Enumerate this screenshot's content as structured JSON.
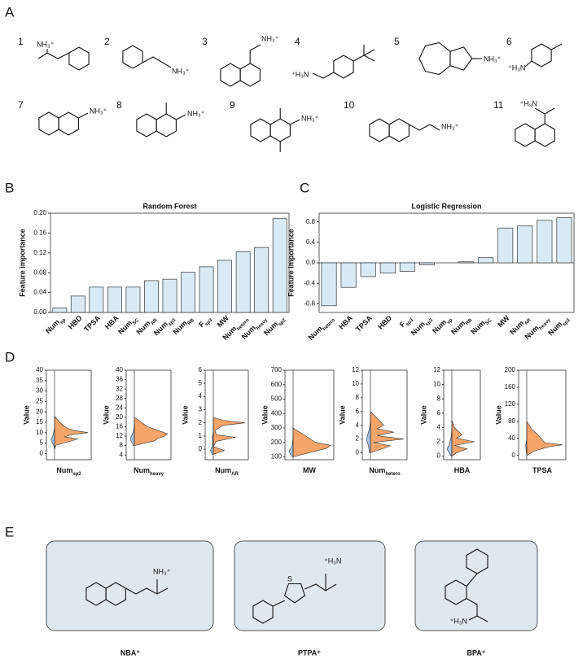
{
  "panel_labels": {
    "a": "A",
    "b": "B",
    "c": "C",
    "d": "D",
    "e": "E"
  },
  "molecules": [
    {
      "number": "1",
      "labels": [
        "NH₃⁺"
      ]
    },
    {
      "number": "2",
      "labels": [
        "NH₃⁺"
      ]
    },
    {
      "number": "3",
      "labels": [
        "NH₃⁺"
      ]
    },
    {
      "number": "4",
      "labels": [
        "⁺H₃N"
      ]
    },
    {
      "number": "5",
      "labels": [
        "NH₃⁺"
      ]
    },
    {
      "number": "6",
      "labels": [
        "⁺H₃N"
      ]
    },
    {
      "number": "7",
      "labels": [
        "NH₃⁺"
      ]
    },
    {
      "number": "8",
      "labels": [
        "NH₃⁺"
      ]
    },
    {
      "number": "9",
      "labels": [
        "NH₃⁺"
      ]
    },
    {
      "number": "10",
      "labels": [
        "NH₃⁺"
      ]
    },
    {
      "number": "11",
      "labels": [
        "⁺H₃N"
      ]
    }
  ],
  "chart_data": [
    {
      "type": "bar",
      "title": "Random Forest",
      "ylabel": "Feature importance",
      "color": "#d9eaf5",
      "categories": [
        {
          "text": "Num",
          "sub": "sp"
        },
        {
          "text": "HBD"
        },
        {
          "text": "TPSA"
        },
        {
          "text": "HBA"
        },
        {
          "text": "Num",
          "sub": "SC"
        },
        {
          "text": "Num",
          "sub": "AR"
        },
        {
          "text": "Num",
          "sub": "sp3"
        },
        {
          "text": "Num",
          "sub": "RB"
        },
        {
          "text": "F",
          "sub": "sp3"
        },
        {
          "text": "MW"
        },
        {
          "text": "Num",
          "sub": "hetero"
        },
        {
          "text": "Num",
          "sub": "heavy"
        },
        {
          "text": "Num",
          "sub": "sp2"
        }
      ],
      "values": [
        0.009,
        0.033,
        0.051,
        0.051,
        0.051,
        0.064,
        0.067,
        0.081,
        0.092,
        0.105,
        0.122,
        0.131,
        0.189
      ],
      "ylim": [
        0,
        0.2
      ],
      "yticks": [
        {
          "value": 0,
          "label": "0.00"
        },
        {
          "value": 0.04,
          "label": "0.04"
        },
        {
          "value": 0.08,
          "label": "0.08"
        },
        {
          "value": 0.12,
          "label": "0.12"
        },
        {
          "value": 0.16,
          "label": "0.16"
        },
        {
          "value": 0.2,
          "label": "0.20"
        }
      ]
    },
    {
      "type": "bar",
      "title": "Logistic Regression",
      "ylabel": "Feature importance",
      "color": "#d9eaf5",
      "categories": [
        {
          "text": "Num",
          "sub": "hetero"
        },
        {
          "text": "HBA"
        },
        {
          "text": "TPSA"
        },
        {
          "text": "HBD"
        },
        {
          "text": "F",
          "sub": "sp3"
        },
        {
          "text": "Num",
          "sub": "sp3"
        },
        {
          "text": "Num",
          "sub": "sp"
        },
        {
          "text": "Num",
          "sub": "RB"
        },
        {
          "text": "Num",
          "sub": "SC"
        },
        {
          "text": "MW"
        },
        {
          "text": "Num",
          "sub": "AR"
        },
        {
          "text": "Num",
          "sub": "heavy"
        },
        {
          "text": "Num",
          "sub": "sp2"
        }
      ],
      "values": [
        -0.84,
        -0.48,
        -0.27,
        -0.2,
        -0.17,
        -0.04,
        0.0,
        0.02,
        0.1,
        0.68,
        0.72,
        0.83,
        0.88
      ],
      "ylim": [
        -0.97,
        0.97
      ],
      "yticks": [
        -0.8,
        -0.4,
        {
          "value": 0,
          "label": "0.0"
        },
        0.4,
        0.8
      ]
    },
    {
      "type": "split-violin",
      "ylabel": "Value",
      "xlabel": {
        "text": "Num",
        "sub": "sp2"
      },
      "ylim": [
        -3,
        40
      ],
      "yticks": [
        0,
        5,
        10,
        15,
        20,
        25,
        30,
        35,
        40
      ],
      "y": [
        2,
        4,
        6,
        7,
        8,
        9,
        10,
        11,
        12,
        13,
        15,
        18
      ],
      "series": [
        {
          "color": "#a9c4e8",
          "values": [
            0,
            0.1,
            0.3,
            0.35,
            0.2,
            0.15,
            0.1,
            0.05,
            0.03,
            0,
            0,
            0
          ]
        },
        {
          "color": "#f5a46a",
          "values": [
            0,
            0.05,
            0.5,
            0.7,
            0.3,
            0.5,
            1,
            0.6,
            0.4,
            0.3,
            0.15,
            0
          ]
        }
      ]
    },
    {
      "type": "split-violin",
      "ylabel": "Value",
      "xlabel": {
        "text": "Num",
        "sub": "heavy"
      },
      "ylim": [
        2,
        40
      ],
      "yticks": [
        4,
        8,
        12,
        16,
        20,
        24,
        28,
        32,
        36,
        40
      ],
      "y": [
        8,
        9,
        10,
        11,
        12,
        13,
        14,
        15,
        16,
        18,
        20
      ],
      "series": [
        {
          "color": "#a9c4e8",
          "values": [
            0.1,
            0.2,
            0.35,
            0.4,
            0.3,
            0.2,
            0.1,
            0.05,
            0.03,
            0,
            0
          ]
        },
        {
          "color": "#f5a46a",
          "values": [
            0,
            0.3,
            0.6,
            0.7,
            0.9,
            1,
            0.8,
            0.6,
            0.4,
            0.2,
            0
          ]
        }
      ]
    },
    {
      "type": "split-violin",
      "ylabel": "Value",
      "xlabel": {
        "text": "Num",
        "sub": "AR"
      },
      "ylim": [
        -0.8,
        6
      ],
      "yticks": [
        0,
        1,
        2,
        3,
        4,
        5,
        6
      ],
      "y": [
        -0.4,
        -0.1,
        0.2,
        0.6,
        0.9,
        1.1,
        1.4,
        1.8,
        2,
        2.2,
        2.4
      ],
      "series": [
        {
          "color": "#a9c4e8",
          "values": [
            0.1,
            0.3,
            0.1,
            0.05,
            0.1,
            0.05,
            0,
            0,
            0,
            0,
            0
          ]
        },
        {
          "color": "#f5a46a",
          "values": [
            0,
            0.35,
            0,
            0.1,
            0.7,
            0.1,
            0.05,
            0.3,
            1,
            0.3,
            0
          ]
        }
      ]
    },
    {
      "type": "split-violin",
      "ylabel": "Value",
      "xlabel": {
        "text": "MW"
      },
      "ylim": [
        80,
        700
      ],
      "yticks": [
        100,
        200,
        300,
        400,
        500,
        600,
        700
      ],
      "y": [
        100,
        120,
        140,
        160,
        180,
        200,
        250,
        300
      ],
      "series": [
        {
          "color": "#a9c4e8",
          "values": [
            0.1,
            0.3,
            0.4,
            0.2,
            0.1,
            0.05,
            0,
            0
          ]
        },
        {
          "color": "#f5a46a",
          "values": [
            0,
            0.3,
            0.6,
            0.9,
            1,
            0.6,
            0.3,
            0
          ]
        }
      ]
    },
    {
      "type": "split-violin",
      "ylabel": "Value",
      "xlabel": {
        "text": "Num",
        "sub": "hetero"
      },
      "ylim": [
        -1,
        12
      ],
      "yticks": [
        0,
        2,
        4,
        6,
        8,
        10,
        12
      ],
      "y": [
        0,
        1,
        1.5,
        2,
        2.5,
        3,
        3.5,
        4,
        5,
        6
      ],
      "series": [
        {
          "color": "#a9c4e8",
          "values": [
            0.1,
            0.2,
            0.3,
            0.4,
            0.3,
            0.2,
            0.1,
            0.05,
            0,
            0
          ]
        },
        {
          "color": "#f5a46a",
          "values": [
            0,
            0.6,
            0.1,
            1,
            0.2,
            0.7,
            0.2,
            0.4,
            0.2,
            0
          ]
        }
      ]
    },
    {
      "type": "split-violin",
      "ylabel": "Value",
      "xlabel": {
        "text": "HBA"
      },
      "ylim": [
        -0.5,
        12
      ],
      "yticks": [
        0,
        2,
        4,
        6,
        8,
        10,
        12
      ],
      "y": [
        0,
        0.5,
        1,
        1.5,
        2,
        2.5,
        3,
        4,
        5
      ],
      "series": [
        {
          "color": "#a9c4e8",
          "values": [
            0.05,
            0.3,
            0.5,
            0.3,
            0.2,
            0.1,
            0.05,
            0,
            0
          ]
        },
        {
          "color": "#f5a46a",
          "values": [
            0,
            0.2,
            0.6,
            0.1,
            0.9,
            0.2,
            0.4,
            0.1,
            0
          ]
        }
      ]
    },
    {
      "type": "split-violin",
      "ylabel": "Value",
      "xlabel": {
        "text": "TPSA"
      },
      "ylim": [
        -10,
        200
      ],
      "yticks": [
        0,
        40,
        80,
        120,
        160,
        200
      ],
      "y": [
        0,
        10,
        20,
        25,
        30,
        40,
        50,
        60,
        80
      ],
      "series": [
        {
          "color": "#a9c4e8",
          "values": [
            0,
            0.05,
            0.1,
            0.1,
            0.05,
            0,
            0,
            0,
            0
          ]
        },
        {
          "color": "#f5a46a",
          "values": [
            0,
            0.2,
            0.6,
            1,
            0.5,
            0.4,
            0.3,
            0.15,
            0
          ]
        }
      ]
    }
  ],
  "structures": [
    {
      "name": "NBA⁺",
      "labels": [
        "NH₃⁺"
      ]
    },
    {
      "name": "PTPA⁺",
      "labels": [
        "S",
        "⁺H₃N"
      ]
    },
    {
      "name": "BPA⁺",
      "labels": [
        "⁺H₃N"
      ]
    }
  ]
}
